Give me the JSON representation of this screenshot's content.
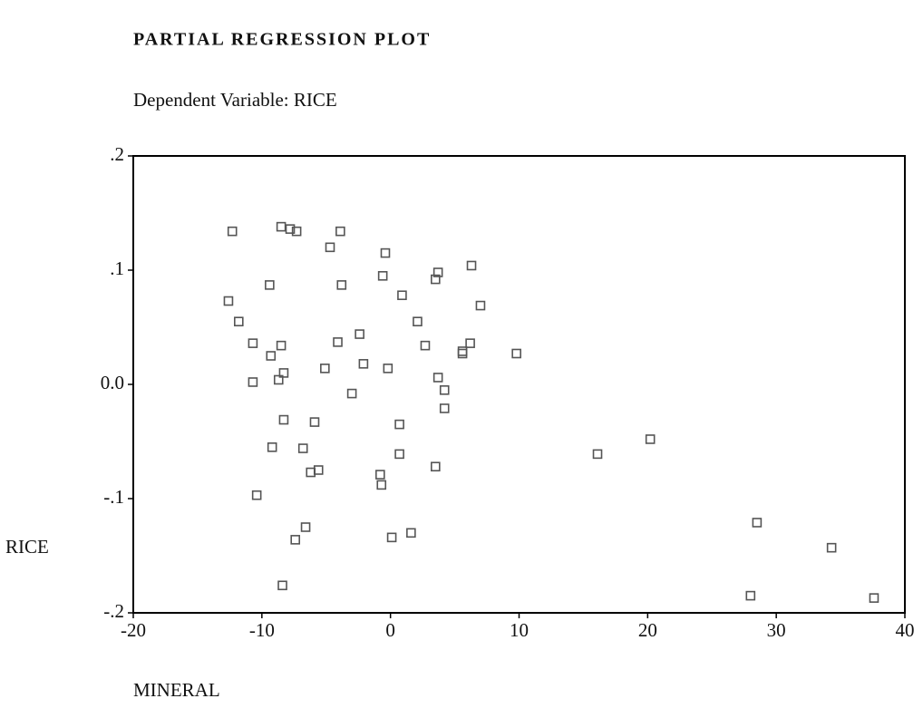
{
  "chart_data": {
    "type": "scatter",
    "title": "PARTIAL REGRESSION PLOT",
    "subtitle": "Dependent Variable: RICE",
    "y_label": "RICE",
    "x_label": "MINERAL",
    "color": "#555555",
    "xlim": [
      -20,
      40
    ],
    "ylim": [
      -0.2,
      0.2
    ],
    "xticks": [
      -20,
      -10,
      0,
      10,
      20,
      30,
      40
    ],
    "yticks": [
      {
        "value": 0.2,
        "label": ".2"
      },
      {
        "value": 0.1,
        "label": ".1"
      },
      {
        "value": 0,
        "label": "0.0"
      },
      {
        "value": -0.1,
        "label": "-.1"
      },
      {
        "value": -0.2,
        "label": "-.2"
      }
    ],
    "x": [
      -12.3,
      -8.5,
      -7.8,
      -7.3,
      -3.9,
      -4.7,
      -0.4,
      -12.6,
      -11.8,
      -9.4,
      -3.8,
      -0.6,
      3.7,
      3.5,
      6.3,
      0.9,
      7.0,
      2.1,
      -10.7,
      -8.5,
      -9.3,
      -2.4,
      -4.1,
      2.7,
      6.2,
      5.6,
      5.6,
      9.8,
      -10.7,
      -8.7,
      -8.3,
      -5.1,
      -2.1,
      -0.2,
      -3.0,
      3.7,
      4.2,
      4.2,
      -8.3,
      -5.9,
      0.7,
      -9.2,
      -6.8,
      0.7,
      3.5,
      -5.6,
      -6.2,
      -0.8,
      -0.7,
      -10.4,
      16.1,
      20.2,
      -6.6,
      -7.4,
      0.1,
      1.6,
      28.5,
      34.3,
      28.0,
      37.6,
      -8.4
    ],
    "values": [
      0.134,
      0.138,
      0.136,
      0.134,
      0.134,
      0.12,
      0.115,
      0.073,
      0.055,
      0.087,
      0.087,
      0.095,
      0.098,
      0.092,
      0.104,
      0.078,
      0.069,
      0.055,
      0.036,
      0.034,
      0.025,
      0.044,
      0.037,
      0.034,
      0.036,
      0.027,
      0.029,
      0.027,
      0.002,
      0.004,
      0.01,
      0.014,
      0.018,
      0.014,
      -0.008,
      0.006,
      -0.005,
      -0.021,
      -0.031,
      -0.033,
      -0.035,
      -0.055,
      -0.056,
      -0.061,
      -0.072,
      -0.075,
      -0.077,
      -0.079,
      -0.088,
      -0.097,
      -0.061,
      -0.048,
      -0.125,
      -0.136,
      -0.134,
      -0.13,
      -0.121,
      -0.143,
      -0.185,
      -0.187,
      -0.176
    ]
  }
}
